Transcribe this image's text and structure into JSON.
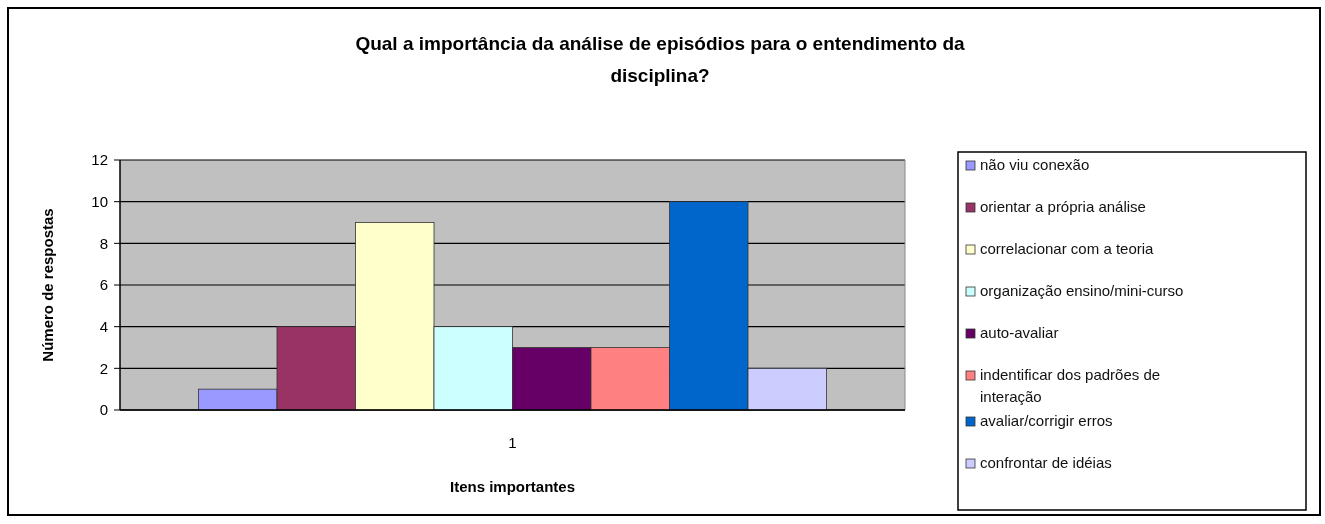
{
  "chart_data": {
    "type": "bar",
    "title": "Qual a importância da análise de episódios para o entendimento da disciplina?",
    "xlabel": "Itens importantes",
    "ylabel": "Número de respostas",
    "categories": [
      "1"
    ],
    "series": [
      {
        "name": "não viu conexão",
        "color": "#9999ff",
        "values": [
          1
        ]
      },
      {
        "name": "orientar a própria análise",
        "color": "#993366",
        "values": [
          4
        ]
      },
      {
        "name": "correlacionar com a teoria",
        "color": "#ffffcc",
        "values": [
          9
        ]
      },
      {
        "name": "organização ensino/mini-curso",
        "color": "#ccffff",
        "values": [
          4
        ]
      },
      {
        "name": "auto-avaliar",
        "color": "#660066",
        "values": [
          3
        ]
      },
      {
        "name": "indentificar dos padrões de interação",
        "color": "#ff8080",
        "values": [
          3
        ]
      },
      {
        "name": "avaliar/corrigir erros",
        "color": "#0066cc",
        "values": [
          10
        ]
      },
      {
        "name": "confrontar de idéias",
        "color": "#ccccff",
        "values": [
          2
        ]
      }
    ],
    "ylim": [
      0,
      12
    ],
    "yticks": [
      0,
      2,
      4,
      6,
      8,
      10,
      12
    ],
    "grid": "y",
    "legend": "right"
  }
}
